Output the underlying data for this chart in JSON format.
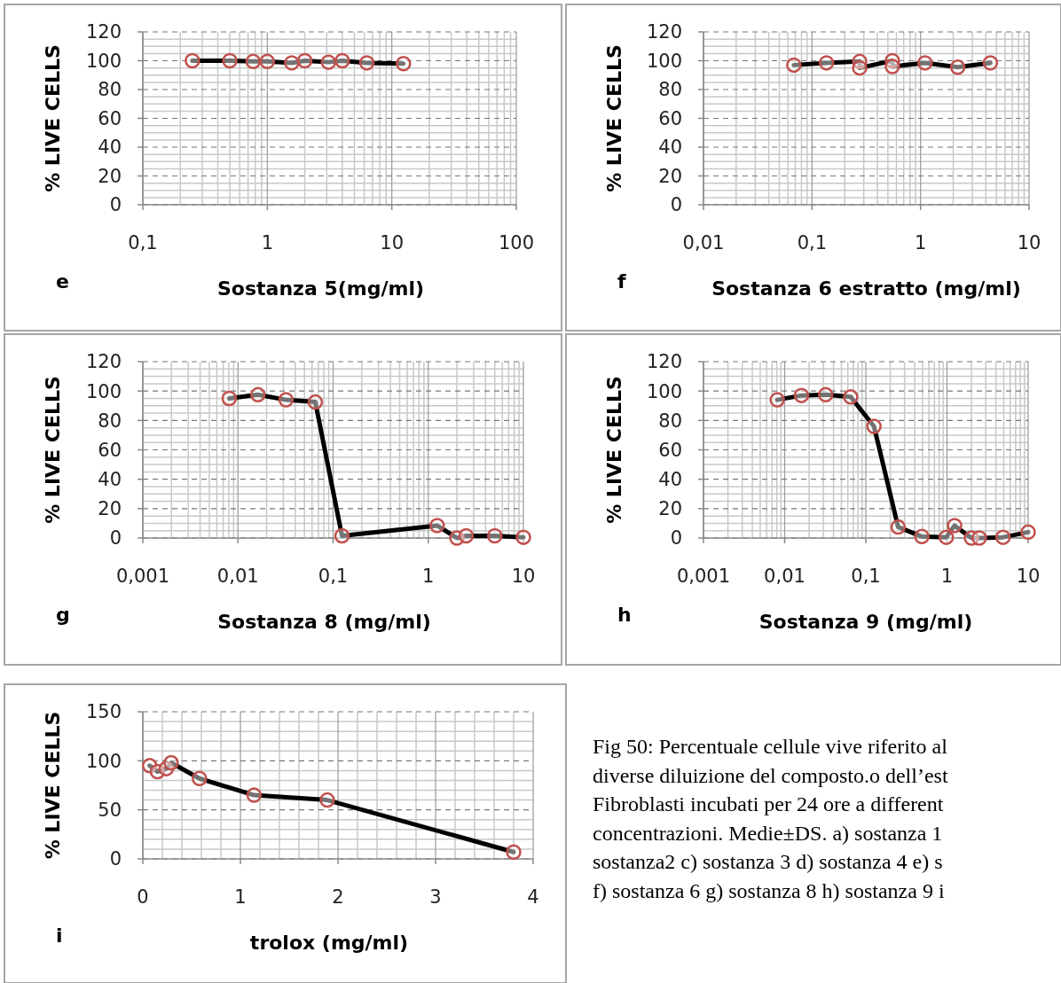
{
  "chart_data": [
    {
      "type": "line",
      "xlabel": "Sostanza 5(mg/ml)",
      "ylabel": "% LIVE CELLS",
      "annotations": [
        "e"
      ],
      "log": "x",
      "grid": true,
      "marker": "circle",
      "line_style": "solid",
      "xlim": [
        0.1,
        100
      ],
      "xticks": [
        {
          "value": 0.1,
          "label": "0,1"
        },
        1,
        10,
        100
      ],
      "ylim": [
        0,
        120
      ],
      "yticks": [
        0,
        20,
        40,
        60,
        80,
        100,
        120
      ],
      "x": [
        0.25,
        0.5,
        0.77,
        1,
        1.57,
        2,
        3.1,
        4,
        6.3,
        12.4
      ],
      "series": [
        {
          "color": "#000000",
          "values": [
            100,
            100,
            99.5,
            99.5,
            98.5,
            100,
            99,
            100,
            98.5,
            98
          ]
        }
      ]
    },
    {
      "type": "line",
      "xlabel": "Sostanza 6 estratto (mg/ml)",
      "ylabel": "% LIVE CELLS",
      "annotations": [
        "f"
      ],
      "log": "x",
      "grid": true,
      "marker": "circle",
      "line_style": "solid",
      "xlim": [
        0.01,
        10
      ],
      "xticks": [
        {
          "value": 0.01,
          "label": "0,01"
        },
        {
          "value": 0.1,
          "label": "0,1"
        },
        1,
        10
      ],
      "ylim": [
        0,
        120
      ],
      "yticks": [
        0,
        20,
        40,
        60,
        80,
        100,
        120
      ],
      "x": [
        0.068,
        0.136,
        0.275,
        0.275,
        0.55,
        0.55,
        1.1,
        2.2,
        4.4
      ],
      "series": [
        {
          "color": "#000000",
          "values": [
            97,
            98.5,
            99.5,
            95,
            100,
            96,
            98.5,
            95.5,
            98.5
          ]
        }
      ]
    },
    {
      "type": "line",
      "xlabel": "Sostanza 8 (mg/ml)",
      "ylabel": "% LIVE CELLS",
      "annotations": [
        "g"
      ],
      "log": "x",
      "grid": true,
      "marker": "circle",
      "line_style": "solid",
      "xlim": [
        0.001,
        10
      ],
      "xticks": [
        {
          "value": 0.001,
          "label": "0,001"
        },
        {
          "value": 0.01,
          "label": "0,01"
        },
        {
          "value": 0.1,
          "label": "0,1"
        },
        1,
        10
      ],
      "ylim": [
        0,
        120
      ],
      "yticks": [
        0,
        20,
        40,
        60,
        80,
        100,
        120
      ],
      "x": [
        0.0081,
        0.0162,
        0.032,
        0.065,
        0.124,
        1.24,
        2,
        2.5,
        5,
        10
      ],
      "series": [
        {
          "color": "#000000",
          "values": [
            95,
            97.5,
            94,
            92.5,
            1.5,
            8.5,
            0,
            1.5,
            1.5,
            0.5
          ]
        }
      ]
    },
    {
      "type": "line",
      "xlabel": "Sostanza 9 (mg/ml)",
      "ylabel": "% LIVE CELLS",
      "annotations": [
        "h"
      ],
      "log": "x",
      "grid": true,
      "marker": "circle",
      "line_style": "solid",
      "xlim": [
        0.001,
        10
      ],
      "xticks": [
        {
          "value": 0.001,
          "label": "0,001"
        },
        {
          "value": 0.01,
          "label": "0,01"
        },
        {
          "value": 0.1,
          "label": "0,1"
        },
        1,
        10
      ],
      "ylim": [
        0,
        120
      ],
      "yticks": [
        0,
        20,
        40,
        60,
        80,
        100,
        120
      ],
      "x": [
        0.0081,
        0.0161,
        0.032,
        0.065,
        0.126,
        0.25,
        0.49,
        0.98,
        1.24,
        2,
        2.5,
        4.9,
        10
      ],
      "series": [
        {
          "color": "#000000",
          "values": [
            94,
            97,
            97.5,
            96,
            76,
            7.5,
            1,
            0.5,
            8.5,
            0,
            0,
            0.5,
            4
          ]
        }
      ]
    },
    {
      "type": "line",
      "xlabel": "trolox (mg/ml)",
      "ylabel": "% LIVE CELLS",
      "annotations": [
        "i"
      ],
      "grid": true,
      "marker": "circle",
      "line_style": "solid",
      "xlim": [
        0,
        4
      ],
      "xticks": [
        0,
        1,
        2,
        3,
        4
      ],
      "ylim": [
        0,
        150
      ],
      "yticks": [
        0,
        50,
        100,
        150
      ],
      "x": [
        0.07,
        0.15,
        0.24,
        0.29,
        0.58,
        1.14,
        1.89,
        3.8
      ],
      "series": [
        {
          "color": "#000000",
          "values": [
            95,
            89,
            92,
            98,
            82,
            65,
            60,
            7
          ]
        }
      ]
    },
    {
      "type": "other",
      "annotations": [
        "Fig 50: Percentuale cellule vive riferito al",
        "diverse diluizione del composto.o dell’est",
        "Fibroblasti incubati per 24 ore a different",
        "concentrazioni. Medie±DS. a) sostanza 1",
        "sostanza2 c) sostanza 3 d) sostanza 4 e) s",
        "f) sostanza 6 g) sostanza 8 h) sostanza 9 i"
      ]
    }
  ]
}
